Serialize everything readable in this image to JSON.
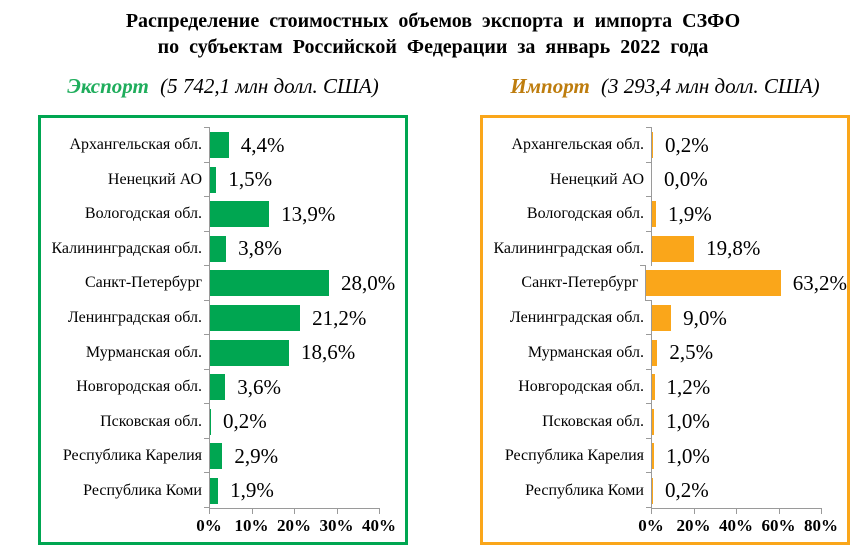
{
  "title": {
    "line1": "Распределение стоимостных объемов  экспорта  и  импорта СЗФО",
    "line2": "по  субъектам  Российской  Федерации за январь 2022 года"
  },
  "subtitles": [
    {
      "name": "Экспорт",
      "amount": "(5 742,1 млн  долл. США)"
    },
    {
      "name": "Импорт",
      "amount": "(3 293,4 млн  долл. США)"
    }
  ],
  "colors": {
    "export_accent": "#00A651",
    "export_title_text": "#1FAD5C",
    "import_accent": "#FAA61A",
    "import_title_text": "#BE7D0E",
    "axis_gray": "#9a9a9a",
    "text_black": "#000000"
  },
  "chart_data": [
    {
      "type": "bar",
      "orientation": "horizontal",
      "name": "export",
      "title": "Экспорт (5 742,1 млн долл. США)",
      "categories": [
        "Архангельская обл.",
        "Ненецкий АО",
        "Вологодская обл.",
        "Калининградская обл.",
        "Санкт-Петербург",
        "Ленинградская обл.",
        "Мурманская обл.",
        "Новгородская обл.",
        "Псковская обл.",
        "Республика Карелия",
        "Республика Коми"
      ],
      "values": [
        4.4,
        1.5,
        13.9,
        3.8,
        28.0,
        21.2,
        18.6,
        3.6,
        0.2,
        2.9,
        1.9
      ],
      "value_labels": [
        "4,4%",
        "1,5%",
        "13,9%",
        "3,8%",
        "28,0%",
        "21,2%",
        "18,6%",
        "3,6%",
        "0,2%",
        "2,9%",
        "1,9%"
      ],
      "axis": {
        "min": 0,
        "max": 40,
        "ticks": [
          0,
          10,
          20,
          30,
          40
        ],
        "tick_labels": [
          "0%",
          "10%",
          "20%",
          "30%",
          "40%"
        ]
      },
      "bar_color": "#00A651",
      "border_color": "#00A651",
      "title_color": "#1FAD5C",
      "grid": false,
      "legend": false
    },
    {
      "type": "bar",
      "orientation": "horizontal",
      "name": "import",
      "title": "Импорт (3 293,4 млн долл. США)",
      "categories": [
        "Архангельская обл.",
        "Ненецкий АО",
        "Вологодская обл.",
        "Калининградская обл.",
        "Санкт-Петербург",
        "Ленинградская обл.",
        "Мурманская обл.",
        "Новгородская обл.",
        "Псковская обл.",
        "Республика Карелия",
        "Республика Коми"
      ],
      "values": [
        0.2,
        0.0,
        1.9,
        19.8,
        63.2,
        9.0,
        2.5,
        1.2,
        1.0,
        1.0,
        0.2
      ],
      "value_labels": [
        "0,2%",
        "0,0%",
        "1,9%",
        "19,8%",
        "63,2%",
        "9,0%",
        "2,5%",
        "1,2%",
        "1,0%",
        "1,0%",
        "0,2%"
      ],
      "axis": {
        "min": 0,
        "max": 80,
        "ticks": [
          0,
          20,
          40,
          60,
          80
        ],
        "tick_labels": [
          "0%",
          "20%",
          "40%",
          "60%",
          "80%"
        ]
      },
      "bar_color": "#FAA61A",
      "border_color": "#FAA61A",
      "title_color": "#BE7D0E",
      "grid": false,
      "legend": false
    }
  ]
}
